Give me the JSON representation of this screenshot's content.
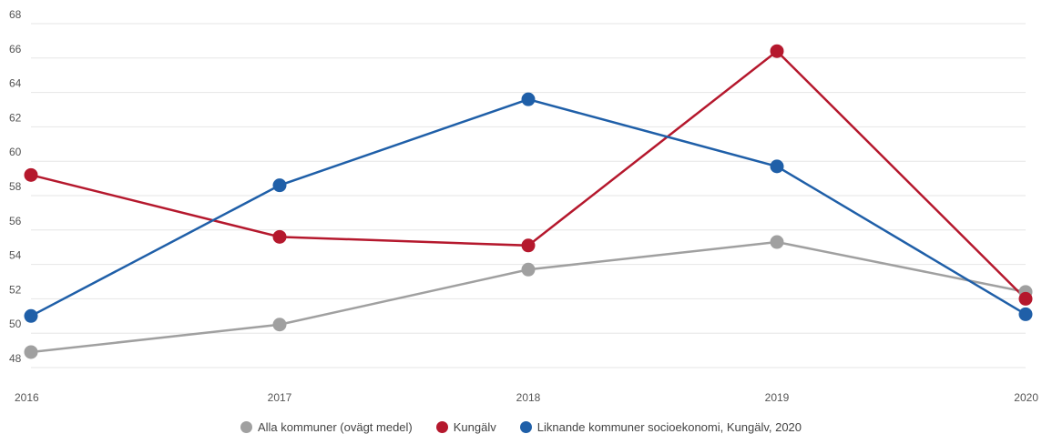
{
  "chart_data": {
    "type": "line",
    "x": [
      "2016",
      "2017",
      "2018",
      "2019",
      "2020"
    ],
    "y_ticks": [
      48,
      50,
      52,
      54,
      56,
      58,
      60,
      62,
      64,
      66,
      68
    ],
    "ylim": [
      47,
      68.5
    ],
    "grid": true,
    "legend_position": "bottom",
    "series": [
      {
        "name": "Alla kommuner (ovägt medel)",
        "color": "#a0a0a0",
        "values": [
          48.9,
          50.5,
          53.7,
          55.3,
          52.4
        ]
      },
      {
        "name": "Kungälv",
        "color": "#b5182d",
        "values": [
          59.2,
          55.6,
          55.1,
          66.4,
          52.0
        ]
      },
      {
        "name": "Liknande kommuner socioekonomi, Kungälv, 2020",
        "color": "#1f5fa8",
        "values": [
          51.0,
          58.6,
          63.6,
          59.7,
          51.1
        ]
      }
    ]
  }
}
